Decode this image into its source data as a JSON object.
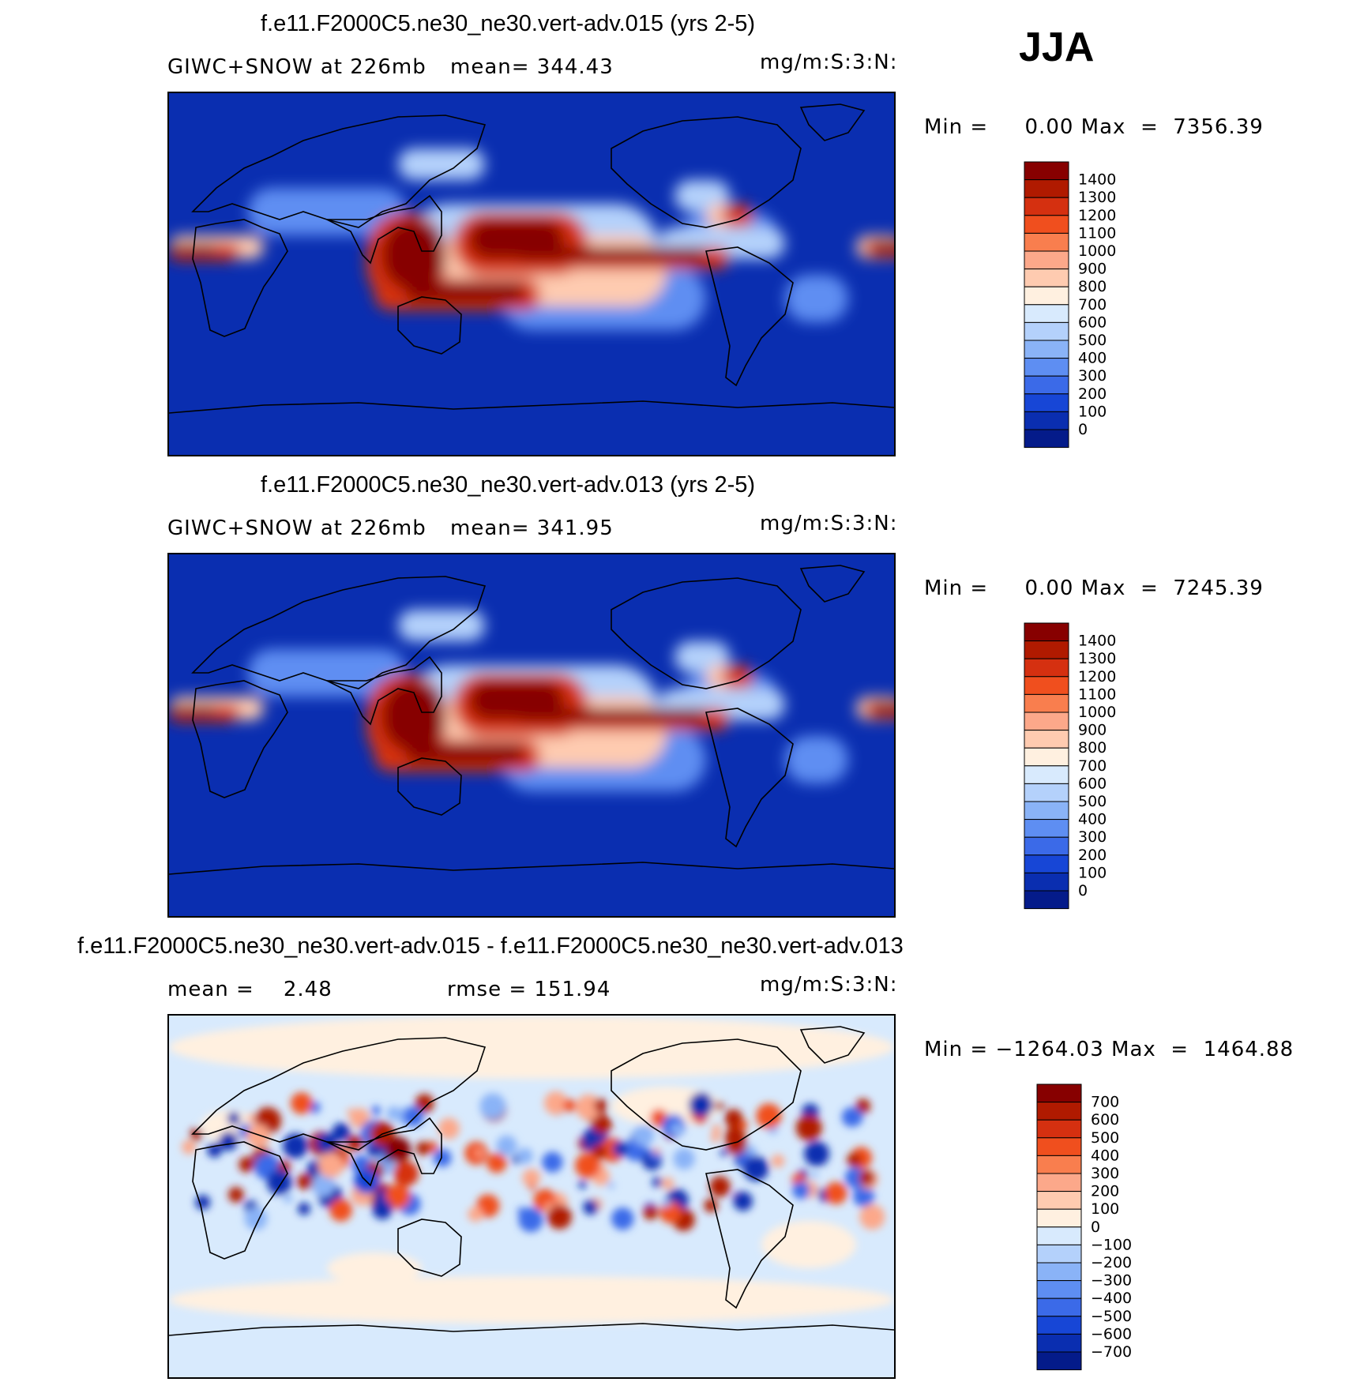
{
  "season": "JJA",
  "panels": [
    {
      "id": "top",
      "title": "f.e11.F2000C5.ne30_ne30.vert-adv.015 (yrs 2-5)",
      "left_text": "GIWC+SNOW at 226mb",
      "mid_text": "mean= 344.43",
      "units": "mg/m:S:3:N:",
      "minmax": "Min =     0.00 Max  =  7356.39",
      "colorbar_labels": [
        "1400",
        "1300",
        "1200",
        "1100",
        "1000",
        "900",
        "800",
        "700",
        "600",
        "500",
        "400",
        "300",
        "200",
        "100",
        "0"
      ],
      "colorbar_colors": [
        "#870000",
        "#b01a00",
        "#d53010",
        "#f04f1e",
        "#f97e4e",
        "#fca88a",
        "#fecbb0",
        "#fff0e0",
        "#d8eafd",
        "#b4d1fb",
        "#8ab3f7",
        "#5e8ef2",
        "#3b6ae8",
        "#1746d6",
        "#0a2eb0",
        "#041b8a"
      ],
      "mapKind": "abs"
    },
    {
      "id": "middle",
      "title": "f.e11.F2000C5.ne30_ne30.vert-adv.013 (yrs 2-5)",
      "left_text": "GIWC+SNOW at 226mb",
      "mid_text": "mean= 341.95",
      "units": "mg/m:S:3:N:",
      "minmax": "Min =     0.00 Max  =  7245.39",
      "colorbar_labels": [
        "1400",
        "1300",
        "1200",
        "1100",
        "1000",
        "900",
        "800",
        "700",
        "600",
        "500",
        "400",
        "300",
        "200",
        "100",
        "0"
      ],
      "colorbar_colors": [
        "#870000",
        "#b01a00",
        "#d53010",
        "#f04f1e",
        "#f97e4e",
        "#fca88a",
        "#fecbb0",
        "#fff0e0",
        "#d8eafd",
        "#b4d1fb",
        "#8ab3f7",
        "#5e8ef2",
        "#3b6ae8",
        "#1746d6",
        "#0a2eb0",
        "#041b8a"
      ],
      "mapKind": "abs"
    },
    {
      "id": "diff",
      "title": "f.e11.F2000C5.ne30_ne30.vert-adv.015 - f.e11.F2000C5.ne30_ne30.vert-adv.013",
      "left_text": "mean =    2.48",
      "mid_text": "rmse = 151.94",
      "units": "mg/m:S:3:N:",
      "minmax": "Min = −1264.03 Max  =  1464.88",
      "colorbar_labels": [
        "700",
        "600",
        "500",
        "400",
        "300",
        "200",
        "100",
        "0",
        "−100",
        "−200",
        "−300",
        "−400",
        "−500",
        "−600",
        "−700"
      ],
      "colorbar_colors": [
        "#870000",
        "#b01a00",
        "#d53010",
        "#f04f1e",
        "#f97e4e",
        "#fca88a",
        "#fecbb0",
        "#fff0e0",
        "#d8eafd",
        "#b4d1fb",
        "#8ab3f7",
        "#5e8ef2",
        "#3b6ae8",
        "#1746d6",
        "#0a2eb0",
        "#041b8a"
      ],
      "mapKind": "diff"
    }
  ]
}
